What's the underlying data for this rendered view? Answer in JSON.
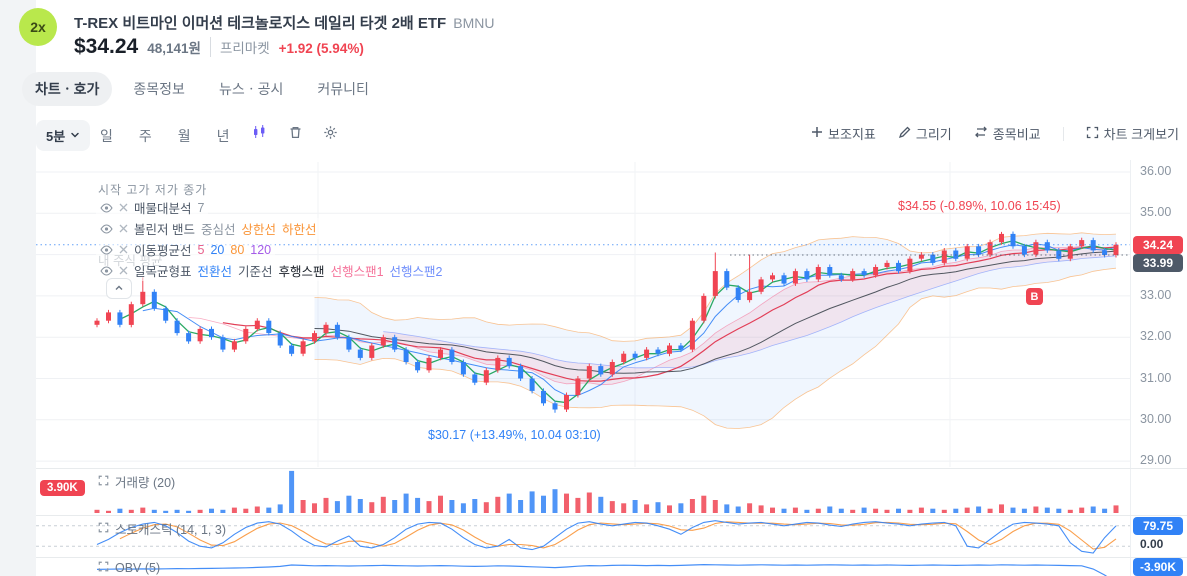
{
  "colors": {
    "up": "#f04452",
    "down": "#3182f6",
    "ma_fast": "#1fa45b",
    "ma_mid": "#e0354e",
    "ma_slow": "#3f4750",
    "tenkan": "#3182f6",
    "cloud_fill": "#f27a97",
    "span_a": "#f5739a",
    "span_b": "#6f8efb",
    "boll_line": "#fa9538",
    "boll_fill": "#3182f6",
    "accent_red": "#f04452",
    "accent_blue": "#3182f6"
  },
  "header": {
    "badge": "2x",
    "title": "T-REX 비트마인 이머션 테크놀로지스 데일리 타겟 2배 ETF",
    "ticker": "BMNU",
    "price": "$34.24",
    "price_krw": "48,141원",
    "session": "프리마켓",
    "change": "+1.92 (5.94%)"
  },
  "tabs": [
    {
      "label": "차트ㆍ호가",
      "active": true
    },
    {
      "label": "종목정보",
      "active": false
    },
    {
      "label": "뉴스ㆍ공시",
      "active": false
    },
    {
      "label": "커뮤니티",
      "active": false
    }
  ],
  "toolbar": {
    "interval": "5분",
    "ranges": [
      "일",
      "주",
      "월",
      "년"
    ],
    "right_items": [
      {
        "label": "보조지표"
      },
      {
        "label": "그리기"
      },
      {
        "label": "종목비교"
      },
      {
        "label": "차트 크게보기"
      }
    ]
  },
  "legend": {
    "ohlc_labels": "시작 고가 저가 종가",
    "my_avg": "내 주식 평균",
    "rows": [
      {
        "parts": [
          {
            "t": "매물대분석",
            "c": "#4e5968"
          },
          {
            "t": "7",
            "c": "#8b95a1"
          }
        ]
      },
      {
        "parts": [
          {
            "t": "볼린저 밴드",
            "c": "#4e5968"
          },
          {
            "t": "중심선",
            "c": "#8b95a1"
          },
          {
            "t": "상한선",
            "c": "#fa9538"
          },
          {
            "t": "하한선",
            "c": "#fa9538"
          }
        ]
      },
      {
        "parts": [
          {
            "t": "이동평균선",
            "c": "#4e5968"
          },
          {
            "t": "5",
            "c": "#e8618c"
          },
          {
            "t": "20",
            "c": "#3182f6"
          },
          {
            "t": "80",
            "c": "#fa9538"
          },
          {
            "t": "120",
            "c": "#a55ce8"
          }
        ]
      },
      {
        "parts": [
          {
            "t": "일목균형표",
            "c": "#4e5968"
          },
          {
            "t": "전환선",
            "c": "#3182f6"
          },
          {
            "t": "기준선",
            "c": "#4e5968"
          },
          {
            "t": "후행스팬",
            "c": "#191f28"
          },
          {
            "t": "선행스팬1",
            "c": "#f5739a"
          },
          {
            "t": "선행스팬2",
            "c": "#6f8efb"
          }
        ]
      }
    ]
  },
  "panes": {
    "volume_label": "거래량 (20)",
    "stoch_label": "스토캐스틱 (14, 1, 3)",
    "obv_label": "OBV (5)"
  },
  "badges": {
    "last": "34.24",
    "avg": "33.99",
    "marker": "B",
    "vol_scale": "3.90K",
    "stoch_value": "79.75",
    "stoch_zero": "0.00",
    "obv_value": "-3.90K"
  },
  "annotations": {
    "high": {
      "text": "$34.55 (-0.89%, 10.06 15:45)"
    },
    "low": {
      "text": "$30.17 (+13.49%, 10.04 03:10)"
    }
  },
  "chart_data": {
    "type": "candlestick",
    "interval": "5m",
    "title": "T-REX BMNU 5분 차트",
    "last_price": 34.24,
    "avg_price": 33.99,
    "price_axis": [
      36,
      35,
      34,
      33,
      32,
      31,
      30,
      29
    ],
    "axis_labels": [
      "36.00",
      "35.00",
      "34.00",
      "33.00",
      "32.00",
      "31.00",
      "30.00",
      "29.00"
    ],
    "y_range": [
      28.85,
      36.1
    ],
    "open_first": 32.3,
    "closes": [
      32.4,
      32.6,
      32.3,
      32.8,
      33.1,
      32.7,
      32.4,
      32.1,
      31.9,
      32.2,
      32.0,
      31.7,
      31.9,
      32.2,
      32.4,
      32.1,
      31.8,
      31.6,
      31.9,
      32.1,
      32.3,
      32.0,
      31.7,
      31.5,
      31.8,
      32.0,
      31.7,
      31.4,
      31.2,
      31.5,
      31.7,
      31.4,
      31.1,
      30.9,
      31.2,
      31.5,
      31.3,
      31.0,
      30.7,
      30.4,
      30.25,
      30.6,
      31.0,
      31.3,
      31.1,
      31.4,
      31.6,
      31.5,
      31.7,
      31.6,
      31.8,
      31.7,
      32.4,
      33.0,
      33.6,
      33.2,
      32.9,
      33.1,
      33.4,
      33.5,
      33.3,
      33.6,
      33.4,
      33.7,
      33.5,
      33.4,
      33.6,
      33.5,
      33.7,
      33.8,
      33.6,
      33.9,
      34.0,
      33.8,
      34.1,
      33.9,
      34.2,
      34.0,
      34.3,
      34.5,
      34.2,
      34.0,
      34.3,
      34.1,
      33.9,
      34.2,
      34.35,
      34.1,
      33.99,
      34.24
    ],
    "special_wicks": {
      "4": {
        "high": 33.45
      },
      "40": {
        "low": 30.17
      },
      "54": {
        "high": 34.05
      },
      "57": {
        "high": 34.0
      },
      "79": {
        "high": 34.55
      }
    },
    "volume_k": [
      0.3,
      0.2,
      0.4,
      0.3,
      0.5,
      0.3,
      0.2,
      0.3,
      0.2,
      0.3,
      0.4,
      0.3,
      0.5,
      0.4,
      0.6,
      0.5,
      0.8,
      3.9,
      1.2,
      0.9,
      1.4,
      1.1,
      1.6,
      1.3,
      1.0,
      1.5,
      1.2,
      1.8,
      1.4,
      1.1,
      1.6,
      1.2,
      0.9,
      1.3,
      1.0,
      1.5,
      1.8,
      1.2,
      2.0,
      1.6,
      2.2,
      1.8,
      1.4,
      1.9,
      1.5,
      1.1,
      0.9,
      1.2,
      0.8,
      1.0,
      0.7,
      0.9,
      1.3,
      1.6,
      1.2,
      0.8,
      0.6,
      0.9,
      0.7,
      0.5,
      0.4,
      0.5,
      0.3,
      0.4,
      0.6,
      0.4,
      0.3,
      0.5,
      0.4,
      0.3,
      0.4,
      0.3,
      0.5,
      0.4,
      0.3,
      0.4,
      0.5,
      0.6,
      0.4,
      0.8,
      0.5,
      0.4,
      0.6,
      0.5,
      0.4,
      0.3,
      0.5,
      0.6,
      0.4,
      0.7
    ],
    "stoch_k": [
      25,
      40,
      60,
      75,
      85,
      90,
      80,
      60,
      35,
      20,
      15,
      30,
      55,
      75,
      88,
      92,
      85,
      65,
      40,
      22,
      18,
      35,
      50,
      20,
      15,
      25,
      45,
      70,
      85,
      90,
      88,
      70,
      45,
      25,
      15,
      20,
      40,
      15,
      10,
      20,
      45,
      70,
      88,
      92,
      85,
      80,
      85,
      90,
      88,
      80,
      70,
      55,
      75,
      90,
      95,
      90,
      85,
      88,
      90,
      85,
      80,
      85,
      90,
      88,
      82,
      78,
      85,
      90,
      92,
      88,
      85,
      80,
      85,
      88,
      90,
      80,
      20,
      15,
      40,
      65,
      85,
      90,
      88,
      85,
      80,
      30,
      5,
      0,
      45,
      79.75
    ],
    "obv_k": [
      -0.6,
      -0.55,
      -0.5,
      -0.52,
      -0.48,
      -0.5,
      -0.45,
      -0.4,
      -0.42,
      -0.38,
      -0.35,
      -0.3,
      -0.25,
      -0.2,
      -0.1,
      0,
      0.15,
      0.5,
      0.4,
      0.3,
      0.35,
      0.3,
      0.25,
      0.3,
      0.35,
      0.4,
      0.35,
      0.3,
      0.25,
      0.3,
      0.35,
      0.3,
      0.2,
      0.15,
      0.2,
      0.3,
      0.25,
      0.15,
      0.05,
      -0.05,
      -0.15,
      0,
      0.2,
      0.35,
      0.3,
      0.4,
      0.45,
      0.4,
      0.35,
      0.4,
      0.35,
      0.4,
      0.5,
      0.6,
      0.55,
      0.5,
      0.45,
      0.5,
      0.55,
      0.5,
      0.45,
      0.5,
      0.45,
      0.5,
      0.55,
      0.5,
      0.45,
      0.5,
      0.45,
      0.5,
      0.45,
      0.4,
      0.45,
      0.5,
      0.45,
      0.4,
      0.45,
      0.5,
      0.45,
      0.55,
      0.5,
      0.45,
      0.5,
      0.45,
      0.4,
      0.35,
      0.3,
      -0.5,
      -2.0,
      -3.9
    ],
    "annotation_points": [
      {
        "text": "$34.55 (-0.89%, 10.06 15:45)",
        "price": 34.55,
        "x_index": 79,
        "color": "#f04452"
      },
      {
        "text": "$30.17 (+13.49%, 10.04 03:10)",
        "price": 30.17,
        "x_index": 40,
        "color": "#3182f6"
      }
    ]
  }
}
